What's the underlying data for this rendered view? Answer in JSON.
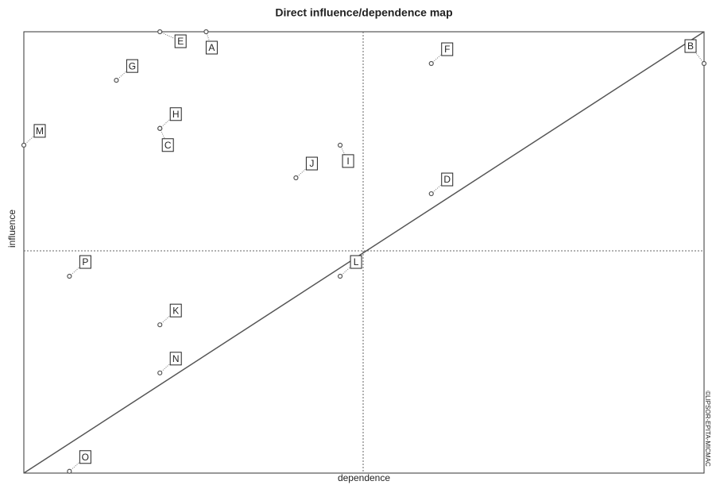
{
  "chart_data": {
    "type": "scatter",
    "title": "Direct influence/dependence map",
    "x_label": "dependence",
    "y_label": "influence",
    "watermark": "©LIPSOR-EPITA-MICMAC",
    "labels": [
      "E",
      "A",
      "G",
      "H",
      "C",
      "M",
      "F",
      "B",
      "I",
      "J",
      "D",
      "L",
      "P",
      "K",
      "N",
      "O"
    ],
    "x": [
      20.0,
      26.8,
      13.6,
      20.0,
      20.0,
      0,
      59.9,
      100,
      46.5,
      40.0,
      59.9,
      46.5,
      6.7,
      20.0,
      20.0,
      6.7
    ],
    "values": [
      100,
      100,
      89.0,
      78.1,
      78.1,
      74.3,
      92.8,
      92.8,
      74.3,
      66.9,
      63.3,
      44.6,
      44.6,
      33.6,
      22.7,
      0.4
    ],
    "xlim": [
      0,
      100
    ],
    "ylim": [
      0,
      100
    ],
    "color": "#555555"
  }
}
